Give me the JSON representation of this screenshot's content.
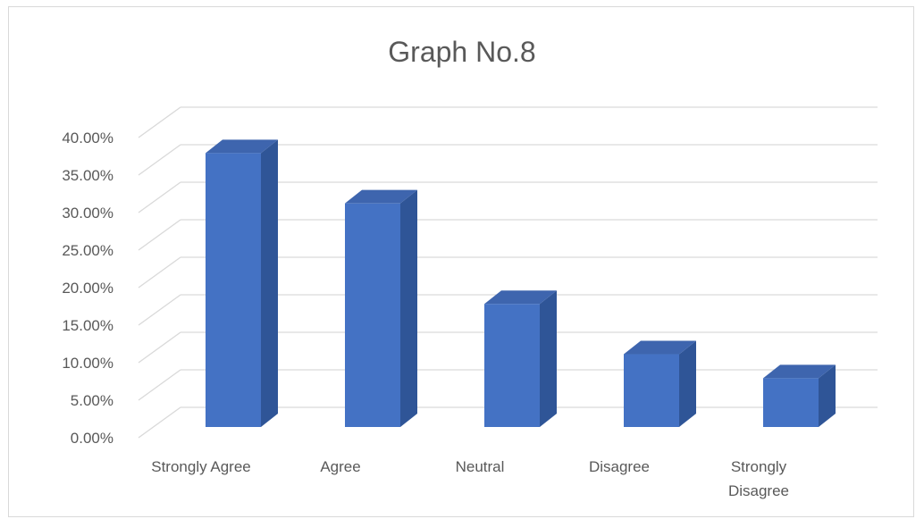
{
  "chart_data": {
    "type": "bar",
    "title": "Graph No.8",
    "categories": [
      "Strongly Agree",
      "Agree",
      "Neutral",
      "Disagree",
      "Strongly Disagree"
    ],
    "category_label_lines": [
      [
        "Strongly Agree"
      ],
      [
        "Agree"
      ],
      [
        "Neutral"
      ],
      [
        "Disagree"
      ],
      [
        "Strongly",
        "Disagree"
      ]
    ],
    "values": [
      0.365,
      0.298,
      0.164,
      0.097,
      0.065
    ],
    "ylim": [
      0,
      0.4
    ],
    "yticks": [
      "0.00%",
      "5.00%",
      "10.00%",
      "15.00%",
      "20.00%",
      "25.00%",
      "30.00%",
      "35.00%",
      "40.00%"
    ],
    "grid": true,
    "style": "3d-column",
    "colors": {
      "front": "#4472c4",
      "side": "#2f5597",
      "top": "#3e65ae",
      "grid": "#d9d9d9",
      "text": "#595959"
    }
  }
}
